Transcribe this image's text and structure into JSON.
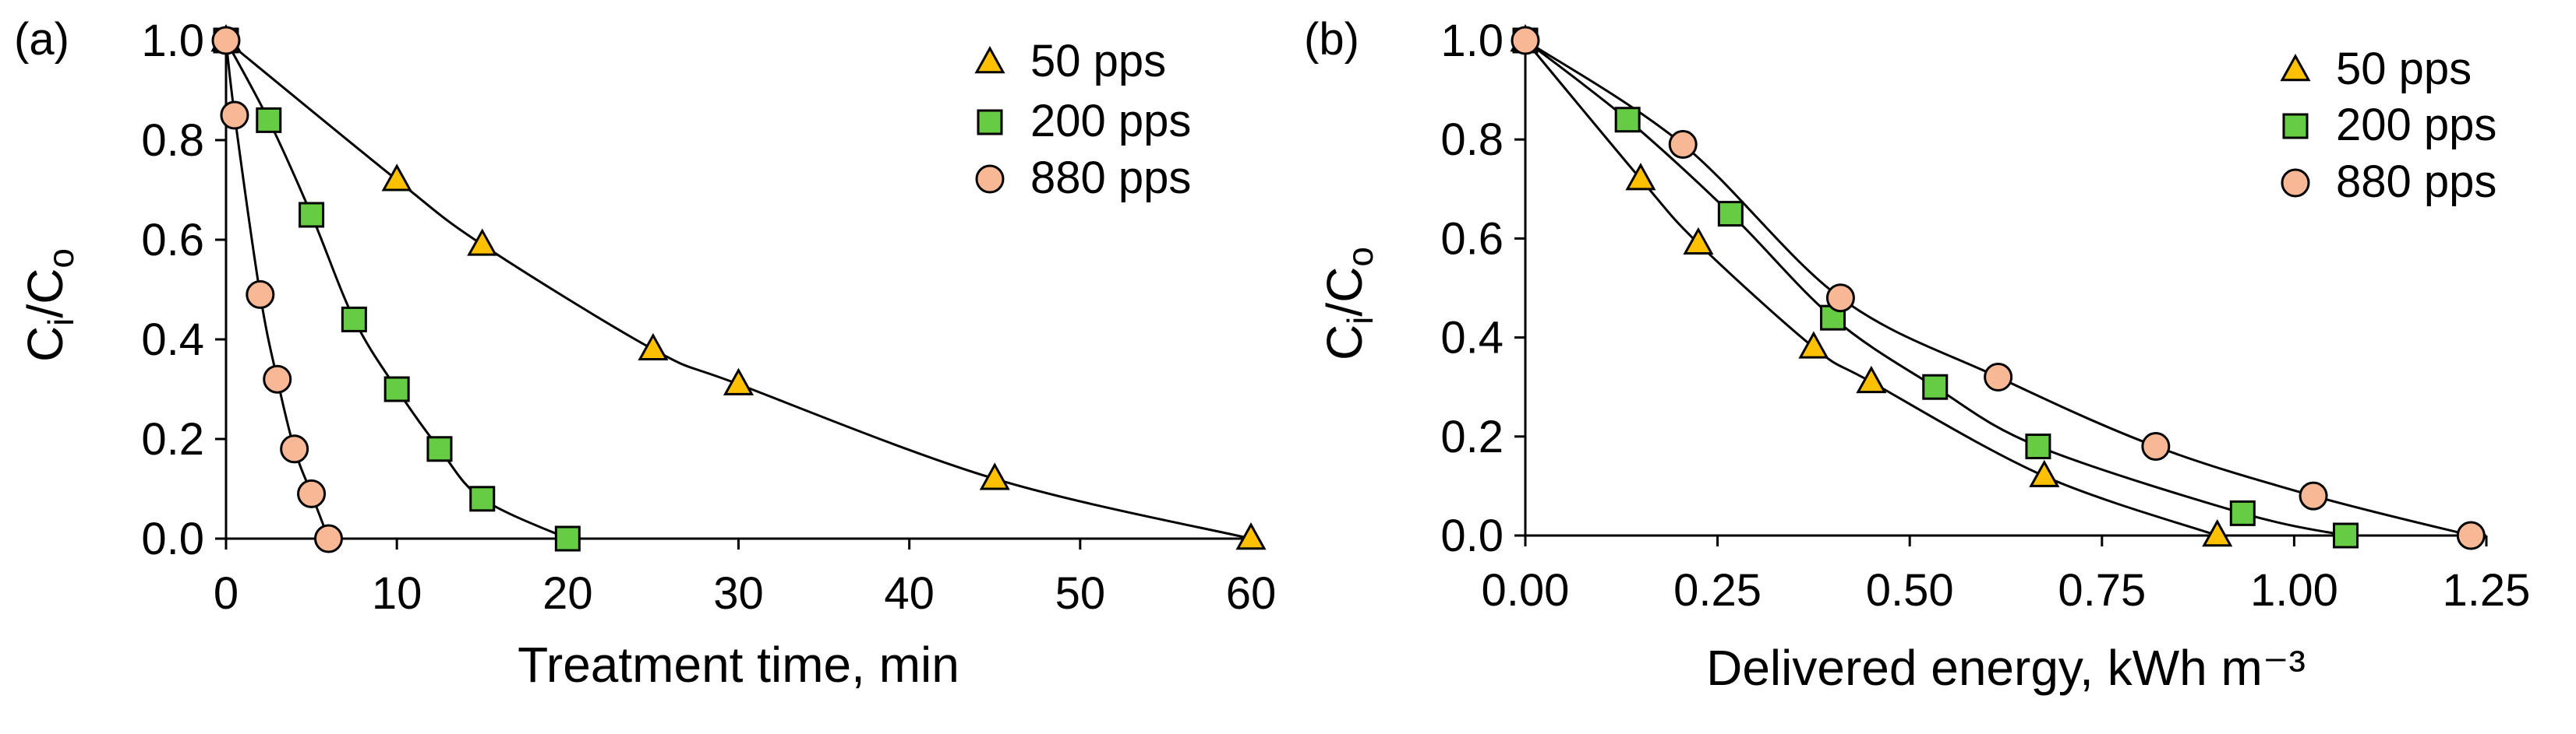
{
  "chart_data": [
    {
      "type": "scatter",
      "panel_label": "(a)",
      "xlabel": "Treatment time, min",
      "ylabel": {
        "base": "C",
        "sub1": "i",
        "sep": "/C",
        "sub2": "o"
      },
      "xlim": [
        0,
        60
      ],
      "ylim": [
        0,
        1.0
      ],
      "xticks": [
        0,
        10,
        20,
        30,
        40,
        50,
        60
      ],
      "xtick_labels": [
        "0",
        "10",
        "20",
        "30",
        "40",
        "50",
        "60"
      ],
      "yticks": [
        0,
        0.2,
        0.4,
        0.6,
        0.8,
        1.0
      ],
      "ytick_labels": [
        "0.0",
        "0.2",
        "0.4",
        "0.6",
        "0.8",
        "1.0"
      ],
      "legend_position": "top-right",
      "series": [
        {
          "name": "50 pps",
          "marker": "triangle",
          "color": "#FFC000",
          "x": [
            0,
            10,
            15,
            25,
            30,
            45,
            60
          ],
          "y": [
            1.0,
            0.72,
            0.59,
            0.38,
            0.31,
            0.12,
            0.0
          ]
        },
        {
          "name": "200 pps",
          "marker": "square",
          "color": "#66CC44",
          "x": [
            0,
            2.5,
            5,
            7.5,
            10,
            12.5,
            15,
            20
          ],
          "y": [
            1.0,
            0.84,
            0.65,
            0.44,
            0.3,
            0.18,
            0.08,
            0.0
          ]
        },
        {
          "name": "880 pps",
          "marker": "circle",
          "color": "#F8B896",
          "x": [
            0,
            0.5,
            2,
            3,
            4,
            5,
            6
          ],
          "y": [
            1.0,
            0.85,
            0.49,
            0.32,
            0.18,
            0.09,
            0.0
          ]
        }
      ]
    },
    {
      "type": "scatter",
      "panel_label": "(b)",
      "xlabel": "Delivered energy, kWh m⁻³",
      "ylabel": {
        "base": "C",
        "sub1": "i",
        "sep": "/C",
        "sub2": "o"
      },
      "xlim": [
        0,
        1.25
      ],
      "ylim": [
        0,
        1.0
      ],
      "xticks": [
        0,
        0.25,
        0.5,
        0.75,
        1.0,
        1.25
      ],
      "xtick_labels": [
        "0.00",
        "0.25",
        "0.50",
        "0.75",
        "1.00",
        "1.25"
      ],
      "yticks": [
        0,
        0.2,
        0.4,
        0.6,
        0.8,
        1.0
      ],
      "ytick_labels": [
        "0.0",
        "0.2",
        "0.4",
        "0.6",
        "0.8",
        "1.0"
      ],
      "legend_position": "top-right",
      "series": [
        {
          "name": "50 pps",
          "marker": "triangle",
          "color": "#FFC000",
          "x": [
            0,
            0.15,
            0.225,
            0.375,
            0.45,
            0.675,
            0.9
          ],
          "y": [
            1.0,
            0.72,
            0.59,
            0.38,
            0.31,
            0.12,
            0.0
          ]
        },
        {
          "name": "200 pps",
          "marker": "square",
          "color": "#66CC44",
          "x": [
            0,
            0.133,
            0.267,
            0.4,
            0.533,
            0.667,
            0.933,
            1.067
          ],
          "y": [
            1.0,
            0.84,
            0.65,
            0.44,
            0.3,
            0.18,
            0.045,
            0.0
          ]
        },
        {
          "name": "880 pps",
          "marker": "circle",
          "color": "#F8B896",
          "x": [
            0,
            0.205,
            0.41,
            0.615,
            0.82,
            1.025,
            1.23
          ],
          "y": [
            1.0,
            0.79,
            0.48,
            0.32,
            0.18,
            0.08,
            0.0
          ]
        }
      ]
    }
  ]
}
